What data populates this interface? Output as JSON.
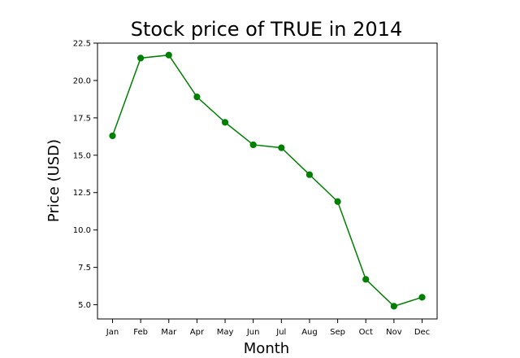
{
  "chart_data": {
    "type": "line",
    "title": "Stock price of TRUE in 2014",
    "xlabel": "Month",
    "ylabel": "Price (USD)",
    "categories": [
      "Jan",
      "Feb",
      "Mar",
      "Apr",
      "May",
      "Jun",
      "Jul",
      "Aug",
      "Sep",
      "Oct",
      "Nov",
      "Dec"
    ],
    "series": [
      {
        "values": [
          16.3,
          21.5,
          21.7,
          18.9,
          17.2,
          15.7,
          15.5,
          13.7,
          11.9,
          6.7,
          4.9,
          5.5
        ]
      }
    ],
    "ylim": [
      4.05,
      22.5
    ],
    "yticks": [
      5.0,
      7.5,
      10.0,
      12.5,
      15.0,
      17.5,
      20.0,
      22.5
    ],
    "ytick_labels": [
      "5.0",
      "7.5",
      "10.0",
      "12.5",
      "15.0",
      "17.5",
      "20.0",
      "22.5"
    ],
    "grid": false,
    "legend": "none",
    "colors": {
      "line": "#008000",
      "marker": "#008000",
      "axes": "#000000",
      "background": "#ffffff"
    }
  }
}
